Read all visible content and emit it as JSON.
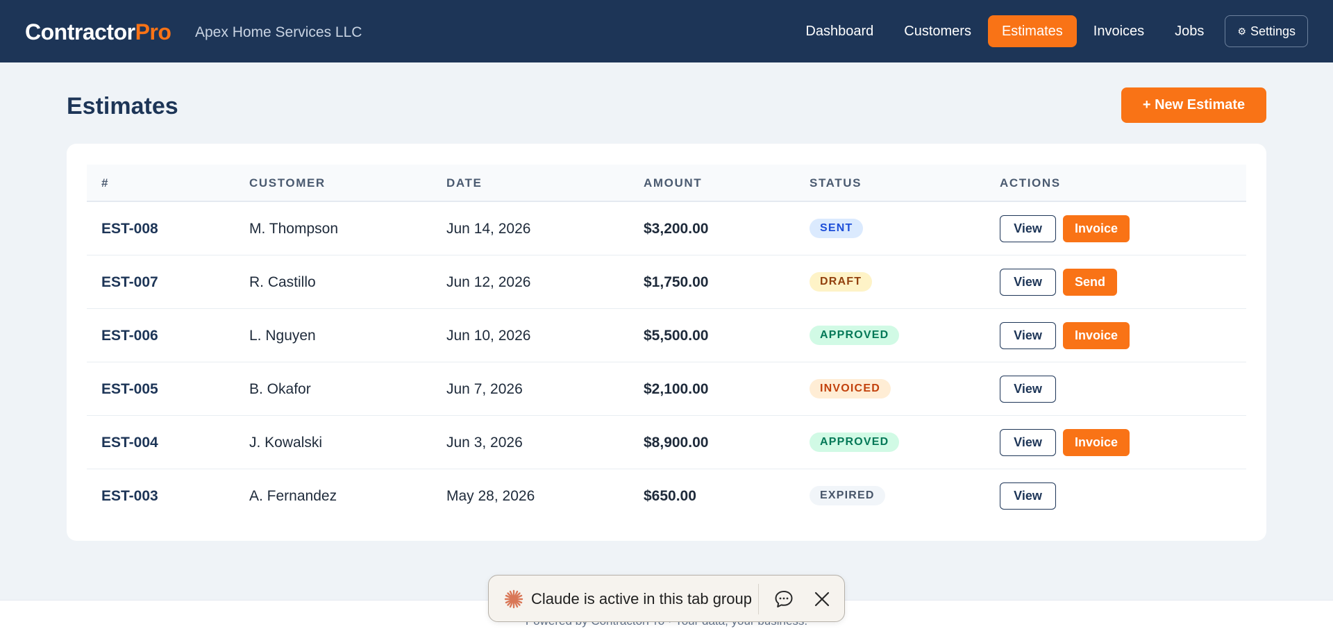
{
  "header": {
    "brand_primary": "Contractor",
    "brand_accent": "Pro",
    "company": "Apex Home Services LLC",
    "nav": [
      {
        "label": "Dashboard",
        "active": false
      },
      {
        "label": "Customers",
        "active": false
      },
      {
        "label": "Estimates",
        "active": true
      },
      {
        "label": "Invoices",
        "active": false
      },
      {
        "label": "Jobs",
        "active": false
      }
    ],
    "settings_icon": "gear-icon",
    "settings_label": "Settings"
  },
  "page": {
    "title": "Estimates",
    "new_button": "+ New Estimate"
  },
  "table": {
    "columns": [
      "#",
      "Customer",
      "Date",
      "Amount",
      "Status",
      "Actions"
    ],
    "rows": [
      {
        "id": "EST-008",
        "customer": "M. Thompson",
        "date": "Jun 14, 2026",
        "amount": "$3,200.00",
        "status": "SENT",
        "view": "View",
        "action": "Invoice"
      },
      {
        "id": "EST-007",
        "customer": "R. Castillo",
        "date": "Jun 12, 2026",
        "amount": "$1,750.00",
        "status": "DRAFT",
        "view": "View",
        "action": "Send"
      },
      {
        "id": "EST-006",
        "customer": "L. Nguyen",
        "date": "Jun 10, 2026",
        "amount": "$5,500.00",
        "status": "APPROVED",
        "view": "View",
        "action": "Invoice"
      },
      {
        "id": "EST-005",
        "customer": "B. Okafor",
        "date": "Jun 7, 2026",
        "amount": "$2,100.00",
        "status": "INVOICED",
        "view": "View",
        "action": ""
      },
      {
        "id": "EST-004",
        "customer": "J. Kowalski",
        "date": "Jun 3, 2026",
        "amount": "$8,900.00",
        "status": "APPROVED",
        "view": "View",
        "action": "Invoice"
      },
      {
        "id": "EST-003",
        "customer": "A. Fernandez",
        "date": "May 28, 2026",
        "amount": "$650.00",
        "status": "EXPIRED",
        "view": "View",
        "action": ""
      }
    ]
  },
  "footer": {
    "text": "Powered by ContractorPro · Your data, your business."
  },
  "claude_overlay": {
    "text": "Claude is active in this tab group",
    "icons": [
      "claude-star-icon",
      "chat-bubble-icon",
      "close-icon"
    ]
  },
  "colors": {
    "header_bg": "#1d3557",
    "accent": "#f97316",
    "page_bg": "#eff3f7"
  }
}
